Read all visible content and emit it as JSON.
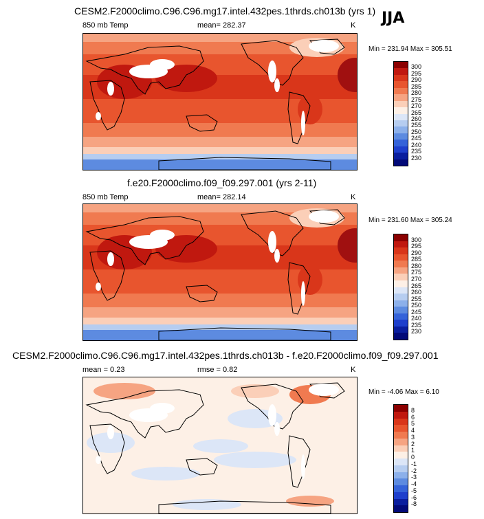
{
  "season": "JJA",
  "panels": [
    {
      "title": "CESM2.F2000climo.C96.C96.mg17.intel.432pes.1thrds.ch013b (yrs 1)",
      "left_label": "850 mb Temp",
      "center_label": "mean= 282.37",
      "right_label": "K",
      "minmax": "Min = 231.94 Max = 305.51",
      "levels": [
        "300",
        "295",
        "290",
        "285",
        "280",
        "275",
        "270",
        "265",
        "260",
        "255",
        "250",
        "245",
        "240",
        "235",
        "230"
      ],
      "colors": [
        "#8b0000",
        "#c0180f",
        "#d9361a",
        "#e8552e",
        "#f07a50",
        "#f6a482",
        "#fbcfb8",
        "#fdf0e6",
        "#dce6f7",
        "#b6cdf0",
        "#8cb0ea",
        "#5d8be0",
        "#3563d9",
        "#1e3fcc",
        "#0a1e9e",
        "#020a78"
      ],
      "fill_style": "abs"
    },
    {
      "title": "f.e20.F2000climo.f09_f09.297.001 (yrs 2-11)",
      "left_label": "850 mb Temp",
      "center_label": "mean= 282.14",
      "right_label": "K",
      "minmax": "Min = 231.60 Max = 305.24",
      "levels": [
        "300",
        "295",
        "290",
        "285",
        "280",
        "275",
        "270",
        "265",
        "260",
        "255",
        "250",
        "245",
        "240",
        "235",
        "230"
      ],
      "colors": [
        "#8b0000",
        "#c0180f",
        "#d9361a",
        "#e8552e",
        "#f07a50",
        "#f6a482",
        "#fbcfb8",
        "#fdf0e6",
        "#dce6f7",
        "#b6cdf0",
        "#8cb0ea",
        "#5d8be0",
        "#3563d9",
        "#1e3fcc",
        "#0a1e9e",
        "#020a78"
      ],
      "fill_style": "abs"
    },
    {
      "title": "CESM2.F2000climo.C96.C96.mg17.intel.432pes.1thrds.ch013b - f.e20.F2000climo.f09_f09.297.001",
      "left_label": "mean =   0.23",
      "center_label": "rmse =   0.82",
      "right_label": "K",
      "minmax": "Min =  -4.06 Max =   6.10",
      "levels": [
        "8",
        "6",
        "5",
        "4",
        "3",
        "2",
        "1",
        "0",
        "-1",
        "-2",
        "-3",
        "-4",
        "-5",
        "-6",
        "-8"
      ],
      "colors": [
        "#8b0000",
        "#c0180f",
        "#d9361a",
        "#e8552e",
        "#f07a50",
        "#f6a482",
        "#fbcfb8",
        "#fdf0e6",
        "#dce6f7",
        "#b6cdf0",
        "#8cb0ea",
        "#5d8be0",
        "#3563d9",
        "#1e3fcc",
        "#0a1e9e",
        "#020a78"
      ],
      "fill_style": "diff"
    }
  ],
  "chart_data": [
    {
      "type": "heatmap",
      "title": "CESM2.F2000climo.C96.C96.mg17.intel.432pes.1thrds.ch013b (yrs 1)",
      "variable": "850 mb Temp",
      "units": "K",
      "mean": 282.37,
      "min": 231.94,
      "max": 305.51,
      "contour_levels": [
        230,
        235,
        240,
        245,
        250,
        255,
        260,
        265,
        270,
        275,
        280,
        285,
        290,
        295,
        300
      ]
    },
    {
      "type": "heatmap",
      "title": "f.e20.F2000climo.f09_f09.297.001 (yrs 2-11)",
      "variable": "850 mb Temp",
      "units": "K",
      "mean": 282.14,
      "min": 231.6,
      "max": 305.24,
      "contour_levels": [
        230,
        235,
        240,
        245,
        250,
        255,
        260,
        265,
        270,
        275,
        280,
        285,
        290,
        295,
        300
      ]
    },
    {
      "type": "heatmap",
      "title": "CESM2.F2000climo.C96.C96.mg17.intel.432pes.1thrds.ch013b - f.e20.F2000climo.f09_f09.297.001",
      "units": "K",
      "mean": 0.23,
      "rmse": 0.82,
      "min": -4.06,
      "max": 6.1,
      "contour_levels": [
        -8,
        -6,
        -5,
        -4,
        -3,
        -2,
        -1,
        0,
        1,
        2,
        3,
        4,
        5,
        6,
        8
      ]
    }
  ]
}
